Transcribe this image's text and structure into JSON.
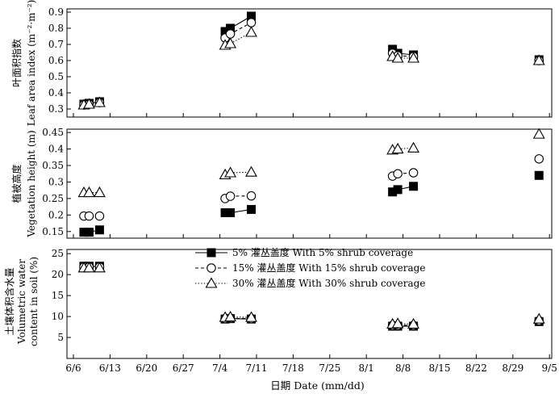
{
  "chart_data": {
    "type": "line",
    "xlabel": "日期 Date (mm/dd)",
    "x_ticks": [
      "6/6",
      "6/13",
      "6/20",
      "6/27",
      "7/4",
      "7/11",
      "7/18",
      "7/25",
      "8/1",
      "8/8",
      "8/15",
      "8/22",
      "8/29",
      "9/5"
    ],
    "series_names": [
      "5% 灌丛盖度 With 5% shrub coverage",
      "15% 灌丛盖度 With 15% shrub coverage",
      "30% 灌丛盖度 With 30% shrub coverage"
    ],
    "markers": [
      "filled-square",
      "open-circle",
      "open-triangle"
    ],
    "line_styles": [
      "solid",
      "dashed",
      "dotted"
    ],
    "legend_position": "top-left of bottom panel",
    "panels": [
      {
        "id": "lai",
        "ylabel_cn": "叶面积指数",
        "ylabel_en": "Leaf area index (m⁻²·m⁻²)",
        "ylim": [
          0.25,
          0.92
        ],
        "yticks": [
          0.3,
          0.4,
          0.5,
          0.6,
          0.7,
          0.8,
          0.9
        ],
        "series": [
          {
            "marker": "filled-square",
            "segments": [
              [
                [
                  "6/8",
                  0.33
                ],
                [
                  "6/9",
                  0.335
                ],
                [
                  "6/11",
                  0.345
                ]
              ],
              [
                [
                  "7/5",
                  0.78
                ],
                [
                  "7/6",
                  0.8
                ],
                [
                  "7/10",
                  0.875
                ]
              ],
              [
                [
                  "8/6",
                  0.67
                ],
                [
                  "8/7",
                  0.645
                ],
                [
                  "8/10",
                  0.635
                ]
              ],
              [
                [
                  "9/3",
                  0.605
                ]
              ]
            ]
          },
          {
            "marker": "open-circle",
            "segments": [
              [
                [
                  "6/8",
                  0.325
                ],
                [
                  "6/9",
                  0.33
                ],
                [
                  "6/11",
                  0.34
                ]
              ],
              [
                [
                  "7/5",
                  0.74
                ],
                [
                  "7/6",
                  0.765
                ],
                [
                  "7/10",
                  0.835
                ]
              ],
              [
                [
                  "8/6",
                  0.645
                ],
                [
                  "8/7",
                  0.63
                ],
                [
                  "8/10",
                  0.625
                ]
              ],
              [
                [
                  "9/3",
                  0.6
                ]
              ]
            ]
          },
          {
            "marker": "open-triangle",
            "segments": [
              [
                [
                  "6/8",
                  0.325
                ],
                [
                  "6/9",
                  0.33
                ],
                [
                  "6/11",
                  0.34
                ]
              ],
              [
                [
                  "7/5",
                  0.695
                ],
                [
                  "7/6",
                  0.705
                ],
                [
                  "7/10",
                  0.775
                ]
              ],
              [
                [
                  "8/6",
                  0.625
                ],
                [
                  "8/7",
                  0.615
                ],
                [
                  "8/10",
                  0.615
                ]
              ],
              [
                [
                  "9/3",
                  0.6
                ]
              ]
            ]
          }
        ]
      },
      {
        "id": "height",
        "ylabel_cn": "植被高度",
        "ylabel_en": "Vegetation height (m)",
        "ylim": [
          0.13,
          0.46
        ],
        "yticks": [
          0.15,
          0.2,
          0.25,
          0.3,
          0.35,
          0.4,
          0.45
        ],
        "series": [
          {
            "marker": "filled-square",
            "segments": [
              [
                [
                  "6/8",
                  0.148
                ],
                [
                  "6/9",
                  0.148
                ],
                [
                  "6/11",
                  0.155
                ]
              ],
              [
                [
                  "7/5",
                  0.207
                ],
                [
                  "7/6",
                  0.207
                ],
                [
                  "7/10",
                  0.217
                ]
              ],
              [
                [
                  "8/6",
                  0.27
                ],
                [
                  "8/7",
                  0.277
                ],
                [
                  "8/10",
                  0.287
                ]
              ],
              [
                [
                  "9/3",
                  0.32
                ]
              ]
            ]
          },
          {
            "marker": "open-circle",
            "segments": [
              [
                [
                  "6/8",
                  0.197
                ],
                [
                  "6/9",
                  0.197
                ],
                [
                  "6/11",
                  0.197
                ]
              ],
              [
                [
                  "7/5",
                  0.25
                ],
                [
                  "7/6",
                  0.257
                ],
                [
                  "7/10",
                  0.258
                ]
              ],
              [
                [
                  "8/6",
                  0.318
                ],
                [
                  "8/7",
                  0.325
                ],
                [
                  "8/10",
                  0.328
                ]
              ],
              [
                [
                  "9/3",
                  0.37
                ]
              ]
            ]
          },
          {
            "marker": "open-triangle",
            "segments": [
              [
                [
                  "6/8",
                  0.268
                ],
                [
                  "6/9",
                  0.268
                ],
                [
                  "6/11",
                  0.268
                ]
              ],
              [
                [
                  "7/5",
                  0.322
                ],
                [
                  "7/6",
                  0.328
                ],
                [
                  "7/10",
                  0.33
                ]
              ],
              [
                [
                  "8/6",
                  0.397
                ],
                [
                  "8/7",
                  0.4
                ],
                [
                  "8/10",
                  0.403
                ]
              ],
              [
                [
                  "9/3",
                  0.445
                ]
              ]
            ]
          }
        ]
      },
      {
        "id": "swc",
        "ylabel_cn": "土壤体积含水量",
        "ylabel_en1": "Volumetric water",
        "ylabel_en2": "content in soil (%)",
        "ylim": [
          0,
          26
        ],
        "yticks": [
          5,
          10,
          15,
          20,
          25
        ],
        "series": [
          {
            "marker": "filled-square",
            "segments": [
              [
                [
                  "6/8",
                  22
                ],
                [
                  "6/9",
                  22
                ],
                [
                  "6/11",
                  22
                ]
              ],
              [
                [
                  "7/5",
                  9.4
                ],
                [
                  "7/6",
                  9.5
                ],
                [
                  "7/10",
                  9.4
                ]
              ],
              [
                [
                  "8/6",
                  7.7
                ],
                [
                  "8/7",
                  7.7
                ],
                [
                  "8/10",
                  7.7
                ]
              ],
              [
                [
                  "9/3",
                  8.8
                ]
              ]
            ]
          },
          {
            "marker": "open-circle",
            "segments": [
              [
                [
                  "6/8",
                  21.8
                ],
                [
                  "6/9",
                  21.8
                ],
                [
                  "6/11",
                  21.8
                ]
              ],
              [
                [
                  "7/5",
                  9.5
                ],
                [
                  "7/6",
                  9.6
                ],
                [
                  "7/10",
                  9.5
                ]
              ],
              [
                [
                  "8/6",
                  7.9
                ],
                [
                  "8/7",
                  7.9
                ],
                [
                  "8/10",
                  7.9
                ]
              ],
              [
                [
                  "9/3",
                  9.0
                ]
              ]
            ]
          },
          {
            "marker": "open-triangle",
            "segments": [
              [
                [
                  "6/8",
                  21.6
                ],
                [
                  "6/9",
                  21.6
                ],
                [
                  "6/11",
                  21.6
                ]
              ],
              [
                [
                  "7/5",
                  9.8
                ],
                [
                  "7/6",
                  9.9
                ],
                [
                  "7/10",
                  9.8
                ]
              ],
              [
                [
                  "8/6",
                  8.2
                ],
                [
                  "8/7",
                  8.3
                ],
                [
                  "8/10",
                  8.2
                ]
              ],
              [
                [
                  "9/3",
                  9.4
                ]
              ]
            ]
          }
        ]
      }
    ]
  }
}
